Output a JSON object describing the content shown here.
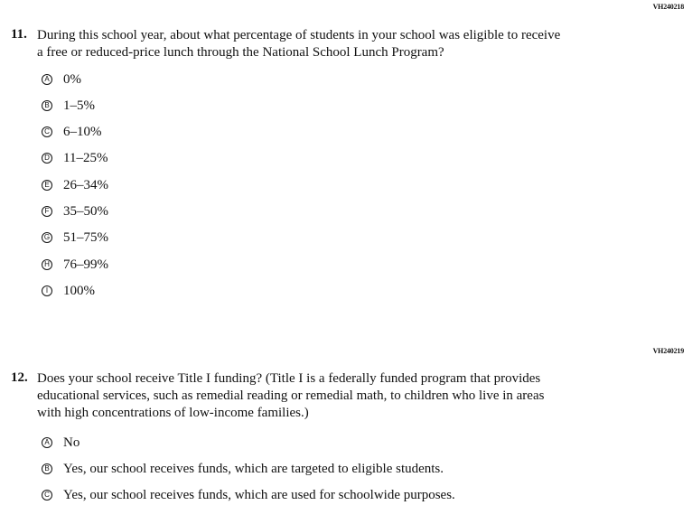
{
  "questions": [
    {
      "id": "VH240218",
      "number": "11.",
      "text_lines": [
        "During this school year, about what percentage of students in your school was eligible to receive",
        "a free or reduced-price lunch through the National School Lunch Program?"
      ],
      "options": [
        {
          "letter": "A",
          "label": "0%"
        },
        {
          "letter": "B",
          "label": "1–5%"
        },
        {
          "letter": "C",
          "label": "6–10%"
        },
        {
          "letter": "D",
          "label": "11–25%"
        },
        {
          "letter": "E",
          "label": "26–34%"
        },
        {
          "letter": "F",
          "label": "35–50%"
        },
        {
          "letter": "G",
          "label": "51–75%"
        },
        {
          "letter": "H",
          "label": "76–99%"
        },
        {
          "letter": "I",
          "label": "100%"
        }
      ]
    },
    {
      "id": "VH240219",
      "number": "12.",
      "text_lines": [
        "Does your school receive Title I funding? (Title I is a federally funded program that provides",
        "educational services, such as remedial reading or remedial math, to children who live in areas",
        "with high concentrations of low-income families.)"
      ],
      "options": [
        {
          "letter": "A",
          "label": "No"
        },
        {
          "letter": "B",
          "label": "Yes, our school receives funds, which are targeted to eligible students."
        },
        {
          "letter": "C",
          "label": "Yes, our school receives funds, which are used for schoolwide purposes."
        }
      ]
    }
  ]
}
